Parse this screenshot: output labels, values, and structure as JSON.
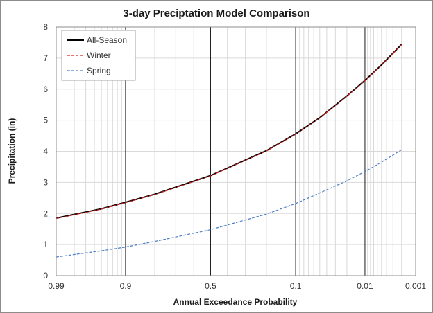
{
  "chart_data": {
    "type": "line",
    "title": "3-day Preciptation Model Comparison",
    "xlabel": "Annual Exceedance Probability",
    "ylabel": "Precipitation (in)",
    "x_scale": "probability",
    "xlim": [
      0.99,
      0.001
    ],
    "ylim": [
      0,
      8
    ],
    "x_ticks": [
      0.99,
      0.9,
      0.5,
      0.1,
      0.01,
      0.001
    ],
    "x_tick_labels": [
      "0.99",
      "0.9",
      "0.5",
      "0.1",
      "0.01",
      "0.001"
    ],
    "y_ticks": [
      0,
      1,
      2,
      3,
      4,
      5,
      6,
      7,
      8
    ],
    "legend_position": "top-left",
    "x": [
      0.99,
      0.95,
      0.9,
      0.8,
      0.5,
      0.2,
      0.1,
      0.05,
      0.02,
      0.01,
      0.005,
      0.002
    ],
    "series": [
      {
        "name": "All-Season",
        "color": "#000000",
        "style": "solid",
        "values": [
          1.85,
          2.15,
          2.36,
          2.62,
          3.22,
          4.02,
          4.56,
          5.08,
          5.78,
          6.28,
          6.78,
          7.44
        ]
      },
      {
        "name": "Winter",
        "color": "#d92020",
        "style": "dashed",
        "values": [
          1.84,
          2.14,
          2.35,
          2.61,
          3.21,
          4.01,
          4.55,
          5.07,
          5.77,
          6.27,
          6.77,
          7.43
        ]
      },
      {
        "name": "Spring",
        "color": "#4a7ec4",
        "style": "dashed",
        "values": [
          0.6,
          0.8,
          0.92,
          1.1,
          1.48,
          1.98,
          2.32,
          2.66,
          3.05,
          3.35,
          3.65,
          4.05
        ]
      }
    ]
  }
}
